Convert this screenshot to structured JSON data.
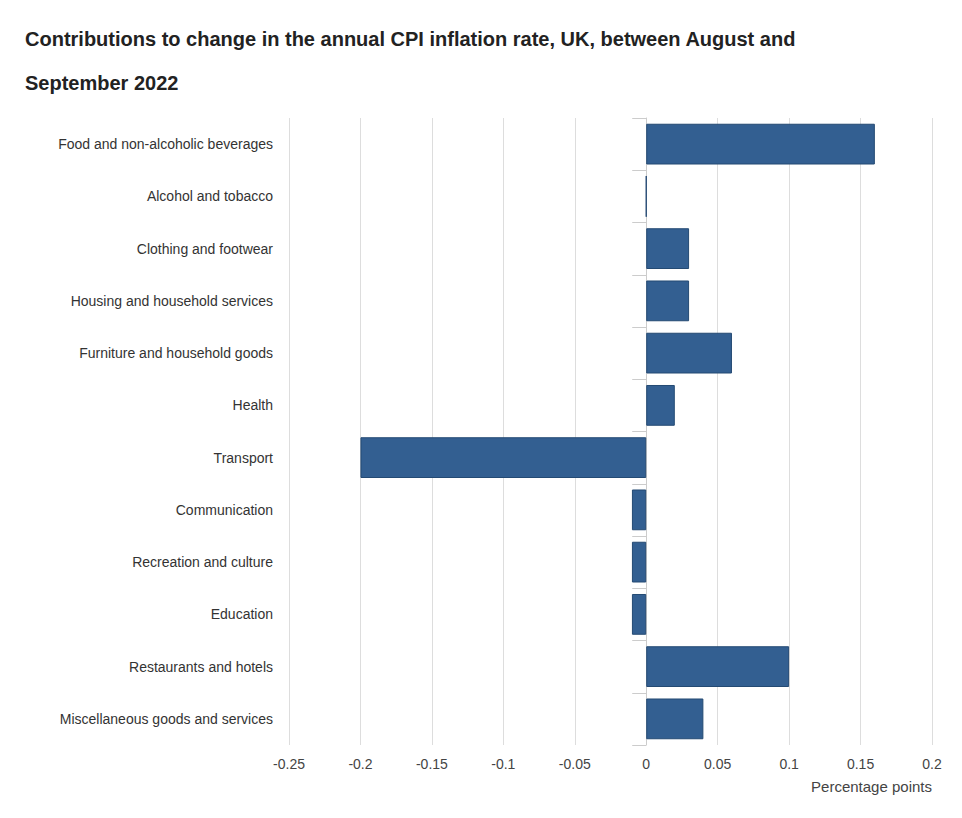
{
  "chart_data": {
    "type": "bar",
    "title": "Contributions to change in the annual CPI inflation rate, UK, between August and September 2022",
    "x_label": "Percentage points",
    "orientation": "horizontal",
    "categories": [
      "Food and non-alcoholic beverages",
      "Alcohol and tobacco",
      "Clothing and footwear",
      "Housing and household services",
      "Furniture and household goods",
      "Health",
      "Transport",
      "Communication",
      "Recreation and culture",
      "Education",
      "Restaurants and hotels",
      "Miscellaneous goods and services"
    ],
    "values": [
      0.16,
      0,
      0.03,
      0.03,
      0.06,
      0.02,
      -0.2,
      -0.01,
      -0.01,
      -0.01,
      0.1,
      0.04
    ],
    "color": "#335f91",
    "xlim": [
      -0.25,
      0.2
    ],
    "xticks": [
      -0.25,
      -0.2,
      -0.15,
      -0.1,
      -0.05,
      0,
      0.05,
      0.1,
      0.15,
      0.2
    ],
    "grid": true
  }
}
